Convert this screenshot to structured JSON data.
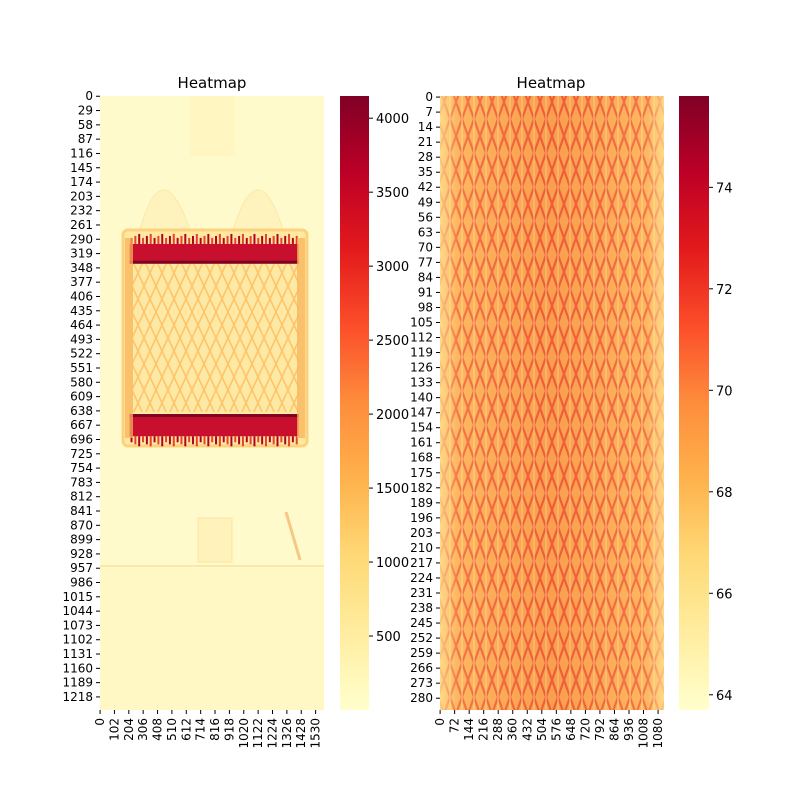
{
  "chart_data": [
    {
      "type": "heatmap",
      "title": "Heatmap",
      "colormap": "YlOrRd",
      "y_tick_labels": [
        "0",
        "29",
        "58",
        "87",
        "116",
        "145",
        "174",
        "203",
        "232",
        "261",
        "290",
        "319",
        "348",
        "377",
        "406",
        "435",
        "464",
        "493",
        "522",
        "551",
        "580",
        "609",
        "638",
        "667",
        "696",
        "725",
        "754",
        "783",
        "812",
        "841",
        "870",
        "899",
        "928",
        "957",
        "986",
        "1015",
        "1044",
        "1073",
        "1102",
        "1131",
        "1160",
        "1189",
        "1218"
      ],
      "x_tick_labels": [
        "0",
        "102",
        "204",
        "306",
        "408",
        "510",
        "612",
        "714",
        "816",
        "918",
        "1020",
        "1122",
        "1224",
        "1326",
        "1428",
        "1530"
      ],
      "y_range": [
        0,
        1245
      ],
      "x_range": [
        0,
        1590
      ],
      "colorbar": {
        "ticks": [
          500,
          1000,
          1500,
          2000,
          2500,
          3000,
          3500,
          4000
        ],
        "vmin": 0,
        "vmax": 4150
      },
      "background_value": 150,
      "features": [
        {
          "kind": "frame",
          "x": [
            200,
            1420
          ],
          "y": [
            265,
            715
          ],
          "value": 900
        },
        {
          "kind": "inner_mesh",
          "x": [
            260,
            1380
          ],
          "y": [
            335,
            650
          ],
          "value": 700
        },
        {
          "kind": "top_band",
          "x": [
            210,
            1410
          ],
          "y": [
            300,
            340
          ],
          "value": 4050
        },
        {
          "kind": "bottom_band",
          "x": [
            210,
            1410
          ],
          "y": [
            645,
            690
          ],
          "value": 4050
        }
      ]
    },
    {
      "type": "heatmap",
      "title": "Heatmap",
      "colormap": "YlOrRd",
      "y_tick_labels": [
        "0",
        "7",
        "14",
        "21",
        "28",
        "35",
        "42",
        "49",
        "56",
        "63",
        "70",
        "77",
        "84",
        "91",
        "98",
        "105",
        "112",
        "119",
        "126",
        "133",
        "140",
        "147",
        "154",
        "161",
        "168",
        "175",
        "182",
        "189",
        "196",
        "203",
        "210",
        "217",
        "224",
        "231",
        "238",
        "245",
        "252",
        "259",
        "266",
        "273",
        "280"
      ],
      "x_tick_labels": [
        "0",
        "72",
        "144",
        "216",
        "288",
        "360",
        "432",
        "504",
        "576",
        "648",
        "720",
        "792",
        "864",
        "936",
        "1008",
        "1080"
      ],
      "y_range": [
        0,
        286
      ],
      "x_range": [
        0,
        1110
      ],
      "colorbar": {
        "ticks": [
          64,
          66,
          68,
          70,
          72,
          74
        ],
        "vmin": 63.7,
        "vmax": 75.8
      },
      "value_range": [
        64,
        75.5
      ],
      "pattern": "diagonal cross-hatch texture, brighter toward the center columns"
    }
  ]
}
